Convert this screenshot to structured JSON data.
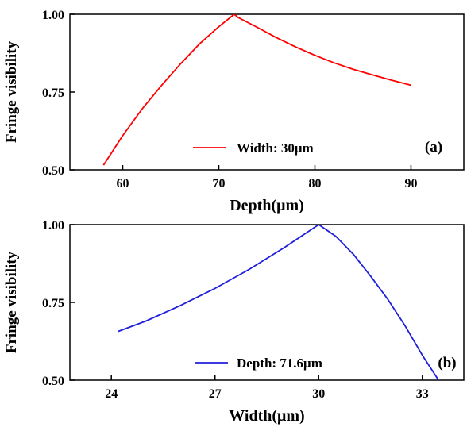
{
  "chart_data": [
    {
      "type": "line",
      "panel_label": "(a)",
      "xlabel": "Depth(μm)",
      "ylabel": "Fringe visibility",
      "xlim": [
        54.5,
        95.5
      ],
      "ylim": [
        0.5,
        1.0
      ],
      "xticks": [
        60,
        70,
        80,
        90
      ],
      "yticks": [
        0.5,
        0.75,
        1.0
      ],
      "ytick_labels": [
        "0.50",
        "0.75",
        "1.00"
      ],
      "grid": false,
      "legend_position": "bottom-center",
      "series": [
        {
          "name": "Width: 30μm",
          "color": "#ff0000",
          "x": [
            58,
            60,
            62,
            64,
            66,
            68,
            70,
            71.6,
            72,
            74,
            76,
            78,
            80,
            82,
            84,
            86,
            88,
            90
          ],
          "y": [
            0.515,
            0.61,
            0.695,
            0.77,
            0.84,
            0.905,
            0.96,
            1.0,
            0.99,
            0.958,
            0.925,
            0.895,
            0.868,
            0.844,
            0.823,
            0.805,
            0.788,
            0.772
          ]
        }
      ]
    },
    {
      "type": "line",
      "panel_label": "(b)",
      "xlabel": "Width(μm)",
      "ylabel": "Fringe visibility",
      "xlim": [
        22.8,
        34.2
      ],
      "ylim": [
        0.5,
        1.0
      ],
      "xticks": [
        24,
        27,
        30,
        33
      ],
      "yticks": [
        0.5,
        0.75,
        1.0
      ],
      "ytick_labels": [
        "0.50",
        "0.75",
        "1.00"
      ],
      "grid": false,
      "legend_position": "bottom-center",
      "series": [
        {
          "name": "Depth: 71.6μm",
          "color": "#1f1fdd",
          "x": [
            24.2,
            25,
            26,
            27,
            28,
            29,
            30,
            30.5,
            31,
            31.5,
            32,
            32.5,
            33,
            33.5
          ],
          "y": [
            0.657,
            0.69,
            0.74,
            0.795,
            0.857,
            0.926,
            1.0,
            0.962,
            0.905,
            0.835,
            0.76,
            0.675,
            0.58,
            0.495
          ]
        }
      ]
    }
  ]
}
